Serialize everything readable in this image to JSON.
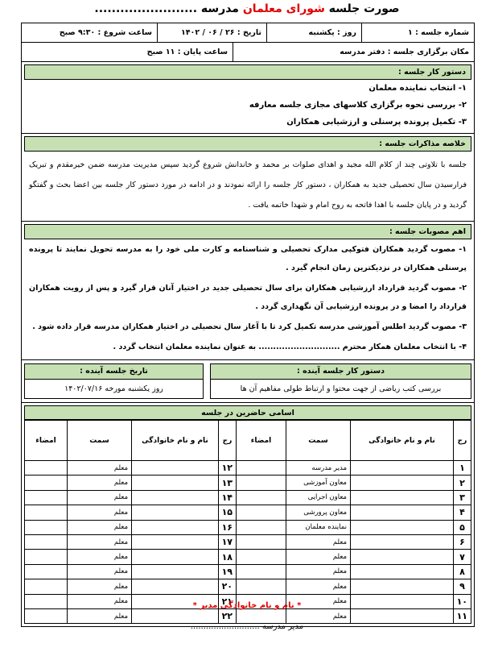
{
  "header": {
    "title_prefix": "صورت جلسه",
    "title_council": "شورای معلمان",
    "title_school": "مدرسه ........................"
  },
  "info": {
    "session_number": "شماره جلسه : ۱",
    "day": "روز : یکشنبه",
    "date": "تاریخ : ۲۶ / ۰۶ / ۱۴۰۲",
    "start_time": "ساعت شروع : ۹:۳۰ صبح",
    "location": "مکان برگزاری جلسه : دفتر مدرسه",
    "end_time": "ساعت پایان : ۱۱ صبح"
  },
  "agenda": {
    "title": "دستور کار جلسه :",
    "items": [
      "۱- انتخاب نماینده معلمان",
      "۲- بررسی نحوه برگزاری کلاسهای مجازی جلسه معارفه",
      "۳- تکمیل پرونده پرسنلی و ارزشیابی همکاران"
    ]
  },
  "discussion": {
    "title": "خلاصه مذاکرات جلسه :",
    "text": "جلسه با تلاوتی چند از کلام الله مجید و اهدای صلوات بر محمد و خاندانش شروع گردید سپس مدیریت مدرسه ضمن خیرمقدم و تبریک فرارسیدن سال تحصیلی جدید به همکاران ، دستور کار جلسه را ارائه نمودند و در ادامه در مورد دستور کار جلسه بین اعضا بحث و گفتگو گردید و در پایان جلسه با اهدا فاتحه به روح امام و شهدا خاتمه یافت ."
  },
  "resolutions": {
    "title": "اهم مصوبات جلسه :",
    "items": [
      "۱- مصوب گردید همکاران فتوکپی مدارک تحصیلی و شناسنامه و کارت ملی خود را به مدرسه تحویل نمایند تا پرونده پرسنلی همکاران در نزدیکترین زمان انجام گیرد .",
      "۲- مصوب گردید قرارداد ارزشیابی همکاران برای سال تحصیلی جدید در اختیار آنان قرار گیرد و پس از رویت همکاران قرارداد را امضا و در پرونده ارزشیابی آن نگهداری گردد .",
      "۳- مصوب گردید اطلس آموزشی مدرسه تکمیل کرد تا با آغاز سال تحصیلی در اختیار همکاران مدرسه قرار داده شود .",
      "۴- با انتخاب معلمان همکار محترم ............................ به عنوان نماینده معلمان انتخاب گردد ."
    ]
  },
  "next_agenda": {
    "title": "دستور کار جلسه آینده :",
    "text": "بررسی کتب ریاضی از جهت محتوا و ارتباط طولی مفاهیم آن ها"
  },
  "next_date": {
    "title": "تاریخ جلسه آینده :",
    "text": "روز یکشنبه مورخه ۱۴۰۲/۰۷/۱۶"
  },
  "attendees": {
    "title": "اسامی حاضرین در جلسه",
    "headers": [
      "رج",
      "نام و نام خانوادگی",
      "سمت",
      "امضاء"
    ],
    "rows": [
      {
        "number": "۱",
        "role": "مدیر مدرسه"
      },
      {
        "number": "۲",
        "role": "معاون آموزشی"
      },
      {
        "number": "۳",
        "role": "معاون اجرایی"
      },
      {
        "number": "۴",
        "role": "معاون پرورشی"
      },
      {
        "number": "۵",
        "role": "نماینده معلمان"
      },
      {
        "number": "۶",
        "role": "معلم"
      },
      {
        "number": "۷",
        "role": "معلم"
      },
      {
        "number": "۸",
        "role": "معلم"
      },
      {
        "number": "۹",
        "role": "معلم"
      },
      {
        "number": "۱۰",
        "role": "معلم"
      },
      {
        "number": "۱۱",
        "role": "معلم"
      },
      {
        "number": "۱۲",
        "role": "معلم"
      },
      {
        "number": "۱۳",
        "role": "معلم"
      },
      {
        "number": "۱۴",
        "role": "معلم"
      },
      {
        "number": "۱۵",
        "role": "معلم"
      },
      {
        "number": "۱۶",
        "role": "معلم"
      },
      {
        "number": "۱۷",
        "role": "معلم"
      },
      {
        "number": "۱۸",
        "role": "معلم"
      },
      {
        "number": "۱۹",
        "role": "معلم"
      },
      {
        "number": "۲۰",
        "role": "معلم"
      },
      {
        "number": "۲۱",
        "role": "معلم"
      },
      {
        "number": "۲۲",
        "role": "معلم"
      }
    ]
  },
  "footer": {
    "signature_label": "* نام و نام خانوادگی مدیر *",
    "principal": "مدیر مدرسه ..........................."
  }
}
